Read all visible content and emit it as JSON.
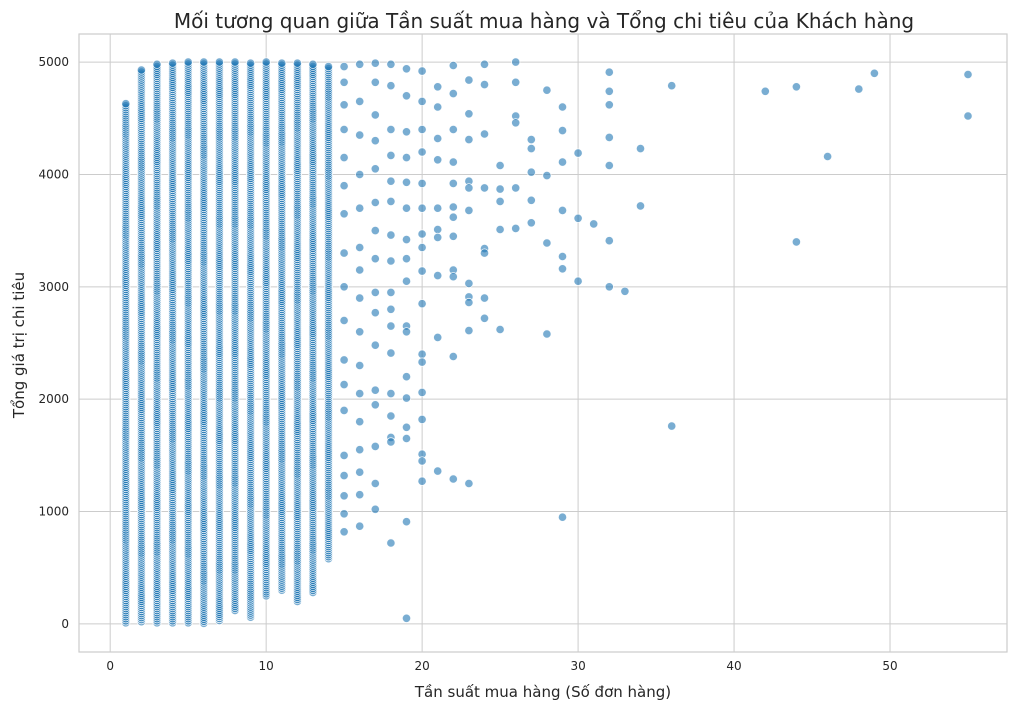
{
  "chart_data": {
    "type": "scatter",
    "title": "Mối tương quan giữa Tần suất mua hàng và Tổng chi tiêu của Khách hàng",
    "xlabel": "Tần suất mua hàng (Số đơn hàng)",
    "ylabel": "Tổng giá trị chi tiêu",
    "xlim": [
      -2,
      57.5
    ],
    "ylim": [
      -250,
      5250
    ],
    "xticks": [
      0,
      10,
      20,
      30,
      40,
      50
    ],
    "yticks": [
      0,
      1000,
      2000,
      3000,
      4000,
      5000
    ],
    "grid": true,
    "color": "#1f77b4",
    "dense_columns": [
      {
        "x": 1,
        "min": 10,
        "max": 4630
      },
      {
        "x": 2,
        "min": 20,
        "max": 4930
      },
      {
        "x": 3,
        "min": 10,
        "max": 4980
      },
      {
        "x": 4,
        "min": 10,
        "max": 4990
      },
      {
        "x": 5,
        "min": 10,
        "max": 5000
      },
      {
        "x": 6,
        "min": 5,
        "max": 5000
      },
      {
        "x": 7,
        "min": 30,
        "max": 5000
      },
      {
        "x": 8,
        "min": 120,
        "max": 5000
      },
      {
        "x": 9,
        "min": 60,
        "max": 4990
      },
      {
        "x": 10,
        "min": 250,
        "max": 5000
      },
      {
        "x": 11,
        "min": 300,
        "max": 4990
      },
      {
        "x": 12,
        "min": 200,
        "max": 4990
      },
      {
        "x": 13,
        "min": 280,
        "max": 4980
      },
      {
        "x": 14,
        "min": 580,
        "max": 4960
      }
    ],
    "points": [
      [
        15,
        4960
      ],
      [
        15,
        4820
      ],
      [
        15,
        4620
      ],
      [
        15,
        4400
      ],
      [
        15,
        4150
      ],
      [
        15,
        3900
      ],
      [
        15,
        3650
      ],
      [
        15,
        3300
      ],
      [
        15,
        3000
      ],
      [
        15,
        2700
      ],
      [
        15,
        2350
      ],
      [
        15,
        2130
      ],
      [
        15,
        1900
      ],
      [
        15,
        1500
      ],
      [
        15,
        1320
      ],
      [
        15,
        1140
      ],
      [
        15,
        980
      ],
      [
        15,
        820
      ],
      [
        16,
        4980
      ],
      [
        16,
        4650
      ],
      [
        16,
        4350
      ],
      [
        16,
        4000
      ],
      [
        16,
        3700
      ],
      [
        16,
        3350
      ],
      [
        16,
        3150
      ],
      [
        16,
        2900
      ],
      [
        16,
        2600
      ],
      [
        16,
        2300
      ],
      [
        16,
        2050
      ],
      [
        16,
        1800
      ],
      [
        16,
        1550
      ],
      [
        16,
        1350
      ],
      [
        16,
        1150
      ],
      [
        16,
        870
      ],
      [
        17,
        4990
      ],
      [
        17,
        4820
      ],
      [
        17,
        4530
      ],
      [
        17,
        4300
      ],
      [
        17,
        4050
      ],
      [
        17,
        3750
      ],
      [
        17,
        3500
      ],
      [
        17,
        3250
      ],
      [
        17,
        2950
      ],
      [
        17,
        2770
      ],
      [
        17,
        2480
      ],
      [
        17,
        2080
      ],
      [
        17,
        1950
      ],
      [
        17,
        1580
      ],
      [
        17,
        1250
      ],
      [
        17,
        1020
      ],
      [
        18,
        4980
      ],
      [
        18,
        4790
      ],
      [
        18,
        4400
      ],
      [
        18,
        4170
      ],
      [
        18,
        3940
      ],
      [
        18,
        3760
      ],
      [
        18,
        3460
      ],
      [
        18,
        3230
      ],
      [
        18,
        2950
      ],
      [
        18,
        2800
      ],
      [
        18,
        2650
      ],
      [
        18,
        2410
      ],
      [
        18,
        2050
      ],
      [
        18,
        1850
      ],
      [
        18,
        1660
      ],
      [
        18,
        1620
      ],
      [
        18,
        720
      ],
      [
        19,
        4940
      ],
      [
        19,
        4700
      ],
      [
        19,
        4380
      ],
      [
        19,
        4150
      ],
      [
        19,
        3930
      ],
      [
        19,
        3700
      ],
      [
        19,
        3420
      ],
      [
        19,
        3250
      ],
      [
        19,
        3050
      ],
      [
        19,
        2650
      ],
      [
        19,
        2600
      ],
      [
        19,
        2200
      ],
      [
        19,
        2010
      ],
      [
        19,
        1750
      ],
      [
        19,
        1650
      ],
      [
        19,
        910
      ],
      [
        19,
        50
      ],
      [
        20,
        4920
      ],
      [
        20,
        4650
      ],
      [
        20,
        4400
      ],
      [
        20,
        4200
      ],
      [
        20,
        3920
      ],
      [
        20,
        3700
      ],
      [
        20,
        3470
      ],
      [
        20,
        3350
      ],
      [
        20,
        3140
      ],
      [
        20,
        2850
      ],
      [
        20,
        2400
      ],
      [
        20,
        2330
      ],
      [
        20,
        2060
      ],
      [
        20,
        1820
      ],
      [
        20,
        1510
      ],
      [
        20,
        1450
      ],
      [
        20,
        1270
      ],
      [
        21,
        4780
      ],
      [
        21,
        4600
      ],
      [
        21,
        4320
      ],
      [
        21,
        4130
      ],
      [
        21,
        3700
      ],
      [
        21,
        3510
      ],
      [
        21,
        3440
      ],
      [
        21,
        3100
      ],
      [
        21,
        2550
      ],
      [
        21,
        1360
      ],
      [
        22,
        4970
      ],
      [
        22,
        4720
      ],
      [
        22,
        4400
      ],
      [
        22,
        4110
      ],
      [
        22,
        3920
      ],
      [
        22,
        3710
      ],
      [
        22,
        3620
      ],
      [
        22,
        3450
      ],
      [
        22,
        3150
      ],
      [
        22,
        3090
      ],
      [
        22,
        2380
      ],
      [
        22,
        1290
      ],
      [
        23,
        4840
      ],
      [
        23,
        4540
      ],
      [
        23,
        4310
      ],
      [
        23,
        3940
      ],
      [
        23,
        3880
      ],
      [
        23,
        3680
      ],
      [
        23,
        3030
      ],
      [
        23,
        2910
      ],
      [
        23,
        2860
      ],
      [
        23,
        2610
      ],
      [
        23,
        1250
      ],
      [
        24,
        4980
      ],
      [
        24,
        4800
      ],
      [
        24,
        4360
      ],
      [
        24,
        3880
      ],
      [
        24,
        3340
      ],
      [
        24,
        3300
      ],
      [
        24,
        2900
      ],
      [
        24,
        2720
      ],
      [
        25,
        4080
      ],
      [
        25,
        3870
      ],
      [
        25,
        3760
      ],
      [
        25,
        3510
      ],
      [
        25,
        2620
      ],
      [
        26,
        5000
      ],
      [
        26,
        4820
      ],
      [
        26,
        4520
      ],
      [
        26,
        4460
      ],
      [
        26,
        3880
      ],
      [
        26,
        3520
      ],
      [
        27,
        4310
      ],
      [
        27,
        4230
      ],
      [
        27,
        4020
      ],
      [
        27,
        3770
      ],
      [
        27,
        3570
      ],
      [
        28,
        4750
      ],
      [
        28,
        3990
      ],
      [
        28,
        3390
      ],
      [
        28,
        2580
      ],
      [
        29,
        4600
      ],
      [
        29,
        4390
      ],
      [
        29,
        4110
      ],
      [
        29,
        3680
      ],
      [
        29,
        3270
      ],
      [
        29,
        3160
      ],
      [
        29,
        950
      ],
      [
        30,
        4190
      ],
      [
        30,
        3610
      ],
      [
        30,
        3050
      ],
      [
        31,
        3560
      ],
      [
        32,
        4910
      ],
      [
        32,
        4740
      ],
      [
        32,
        4620
      ],
      [
        32,
        4330
      ],
      [
        32,
        4080
      ],
      [
        32,
        3410
      ],
      [
        32,
        3000
      ],
      [
        33,
        2960
      ],
      [
        34,
        4230
      ],
      [
        34,
        3720
      ],
      [
        36,
        4790
      ],
      [
        36,
        1760
      ],
      [
        42,
        4740
      ],
      [
        44,
        4780
      ],
      [
        44,
        3400
      ],
      [
        46,
        4160
      ],
      [
        48,
        4760
      ],
      [
        49,
        4900
      ],
      [
        55,
        4890
      ],
      [
        55,
        4520
      ]
    ]
  }
}
